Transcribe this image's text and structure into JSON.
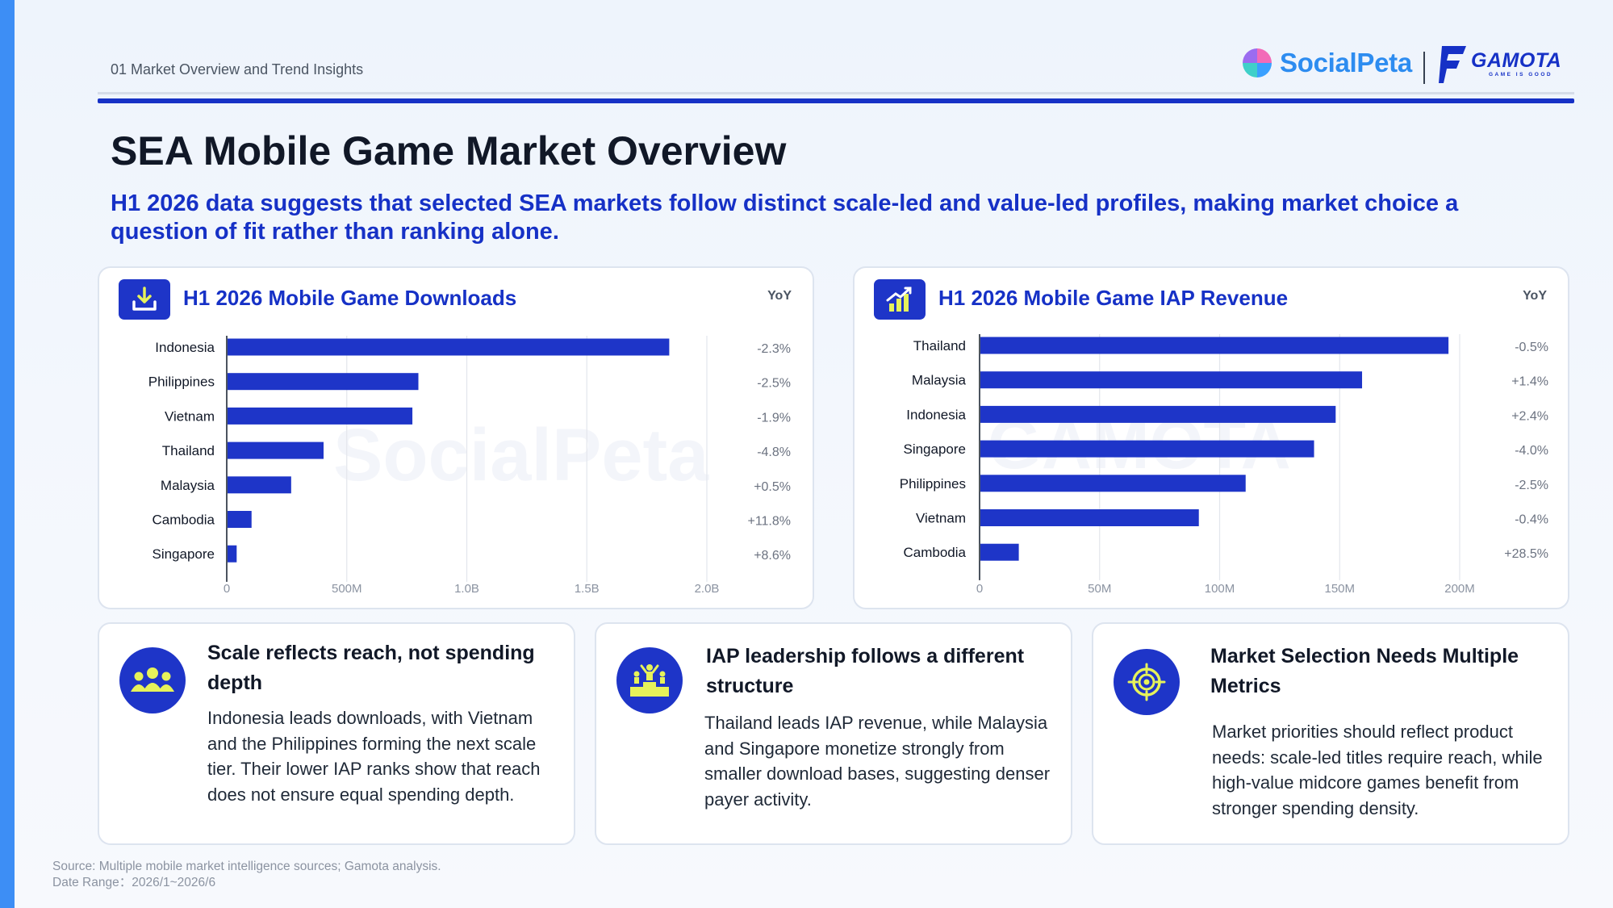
{
  "header": {
    "section_label": "01 Market Overview and Trend Insights",
    "logo_socialpeta": "SocialPeta",
    "logo_gamota": "GAMOTA",
    "logo_gamota_tagline": "GAME IS GOOD"
  },
  "title": "SEA Mobile Game Market Overview",
  "subtitle": "H1 2026 data suggests that selected SEA markets follow distinct scale-led and value-led profiles, making market choice a question of fit rather than ranking alone.",
  "colors": {
    "accent": "#1631c6",
    "bar": "#1e35c8",
    "brand_blue": "#2d8cf0",
    "left_strip": "#3d8ef5"
  },
  "icons": {
    "downloads": "download-icon",
    "iap": "revenue-chart-icon",
    "insight_1": "users-group-icon",
    "insight_2": "podium-icon",
    "insight_3": "target-icon"
  },
  "chart_data": [
    {
      "type": "bar",
      "orientation": "horizontal",
      "title": "H1 2026 Mobile Game Downloads",
      "yoy_label": "YoY",
      "categories": [
        "Indonesia",
        "Philippines",
        "Vietnam",
        "Thailand",
        "Malaysia",
        "Cambodia",
        "Singapore"
      ],
      "values": [
        1840000000,
        795000000,
        770000000,
        400000000,
        265000000,
        100000000,
        38000000
      ],
      "yoy": [
        "-2.3%",
        "-2.5%",
        "-1.9%",
        "-4.8%",
        "+0.5%",
        "+11.8%",
        "+8.6%"
      ],
      "xticks": [
        0,
        500000000,
        1000000000,
        1500000000,
        2000000000
      ],
      "xtick_labels": [
        "0",
        "500M",
        "1.0B",
        "1.5B",
        "2.0B"
      ],
      "xlim": [
        0,
        2000000000
      ],
      "grid": true,
      "watermark": "SocialPeta"
    },
    {
      "type": "bar",
      "orientation": "horizontal",
      "title": "H1 2026 Mobile Game IAP Revenue",
      "yoy_label": "YoY",
      "categories": [
        "Thailand",
        "Malaysia",
        "Indonesia",
        "Singapore",
        "Philippines",
        "Vietnam",
        "Cambodia"
      ],
      "values": [
        195000000,
        159000000,
        148000000,
        139000000,
        110500000,
        91000000,
        16000000
      ],
      "yoy": [
        "-0.5%",
        "+1.4%",
        "+2.4%",
        "-4.0%",
        "-2.5%",
        "-0.4%",
        "+28.5%"
      ],
      "xticks": [
        0,
        50000000,
        100000000,
        150000000,
        200000000
      ],
      "xtick_labels": [
        "0",
        "50M",
        "100M",
        "150M",
        "200M"
      ],
      "xlim": [
        0,
        200000000
      ],
      "grid": true,
      "watermark": "GAMOTA"
    }
  ],
  "insights": [
    {
      "title": "Scale reflects reach, not spending depth",
      "body": "Indonesia leads downloads, with Vietnam and the Philippines forming the next scale tier. Their lower IAP ranks show that reach does not ensure equal spending depth."
    },
    {
      "title": "IAP leadership follows a different structure",
      "body": "Thailand leads IAP revenue, while Malaysia and Singapore monetize strongly from smaller download bases, suggesting denser payer activity."
    },
    {
      "title": "Market Selection Needs Multiple Metrics",
      "body": "Market priorities should reflect product needs: scale-led titles require reach, while high-value midcore games benefit from stronger spending density."
    }
  ],
  "footer": {
    "source": "Source: Multiple mobile market intelligence sources; Gamota analysis.",
    "date_range": "Date Range：2026/1~2026/6"
  }
}
